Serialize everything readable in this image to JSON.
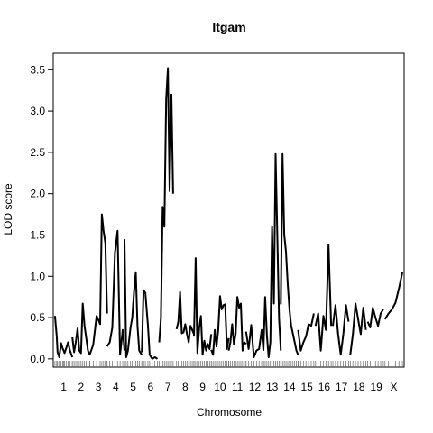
{
  "chart_data": {
    "type": "line",
    "title": "Itgam",
    "xlabel": "Chromosome",
    "ylabel": "LOD score",
    "ylim": [
      0,
      3.5
    ],
    "yticks": [
      "0.0",
      "0.5",
      "1.0",
      "1.5",
      "2.0",
      "2.5",
      "3.0",
      "3.5"
    ],
    "grid": false,
    "legend": "none",
    "chromosome_labels": [
      "1",
      "2",
      "3",
      "4",
      "5",
      "6",
      "7",
      "8",
      "9",
      "10",
      "11",
      "12",
      "13",
      "14",
      "15",
      "16",
      "17",
      "18",
      "19",
      "X"
    ],
    "series": [
      {
        "chromosomes": [
          {
            "chr": "1",
            "start": 0.0,
            "end": 2.0,
            "pos": [
              0.0,
              0.2,
              0.3,
              0.5,
              0.7,
              0.9,
              1.0,
              1.1,
              1.3,
              1.5,
              1.7,
              2.0
            ],
            "lod": [
              0.52,
              0.27,
              0.08,
              0.02,
              0.19,
              0.12,
              0.1,
              0.07,
              0.13,
              0.2,
              0.11,
              0.02
            ]
          },
          {
            "chr": "2",
            "start": 2.0,
            "end": 4.0,
            "pos": [
              2.0,
              2.2,
              2.4,
              2.6,
              2.8,
              3.0,
              3.2,
              3.4,
              3.6,
              3.8,
              4.0
            ],
            "lod": [
              0.26,
              0.08,
              0.2,
              0.37,
              0.1,
              0.07,
              0.67,
              0.4,
              0.25,
              0.1,
              0.05
            ]
          },
          {
            "chr": "3",
            "start": 4.0,
            "end": 6.0,
            "pos": [
              4.0,
              4.4,
              4.8,
              5.2,
              5.4,
              5.6,
              5.8,
              6.0
            ],
            "lod": [
              0.05,
              0.17,
              0.52,
              0.42,
              1.75,
              1.55,
              1.4,
              0.55
            ]
          },
          {
            "chr": "4",
            "start": 6.0,
            "end": 8.0,
            "pos": [
              6.0,
              6.3,
              6.6,
              6.9,
              7.2,
              7.5,
              7.8,
              8.0
            ],
            "lod": [
              0.15,
              0.2,
              0.38,
              1.28,
              1.55,
              0.05,
              0.35,
              0.1
            ]
          },
          {
            "chr": "5",
            "start": 8.0,
            "end": 10.0,
            "pos": [
              8.0,
              8.2,
              8.4,
              8.7,
              8.9,
              9.1,
              9.3,
              9.5,
              9.7,
              10.0
            ],
            "lod": [
              1.45,
              0.02,
              0.1,
              0.38,
              0.5,
              0.8,
              1.05,
              0.4,
              0.1,
              0.05
            ]
          },
          {
            "chr": "6",
            "start": 10.0,
            "end": 12.0,
            "pos": [
              10.0,
              10.2,
              10.4,
              10.7,
              10.9,
              11.2,
              11.5,
              11.8
            ],
            "lod": [
              0.08,
              0.83,
              0.8,
              0.4,
              0.05,
              0.0,
              0.02,
              0.0
            ]
          },
          {
            "chr": "7",
            "start": 12.0,
            "end": 14.0,
            "pos": [
              12.0,
              12.2,
              12.4,
              12.6,
              12.8,
              13.0,
              13.2,
              13.4,
              13.6
            ],
            "lod": [
              0.2,
              0.5,
              1.84,
              1.6,
              3.15,
              3.52,
              2.03,
              3.2,
              2.0
            ]
          },
          {
            "chr": "8",
            "start": 14.0,
            "end": 16.0,
            "pos": [
              14.0,
              14.2,
              14.4,
              14.6,
              14.8,
              15.0,
              15.2,
              15.4,
              15.6,
              15.8,
              16.0
            ],
            "lod": [
              0.36,
              0.45,
              0.81,
              0.31,
              0.32,
              0.42,
              0.3,
              0.2,
              0.4,
              0.35,
              0.3
            ]
          },
          {
            "chr": "9",
            "start": 16.0,
            "end": 18.0,
            "pos": [
              16.0,
              16.2,
              16.4,
              16.6,
              16.8,
              17.0,
              17.2,
              17.4,
              17.6,
              17.8,
              18.0
            ],
            "lod": [
              0.27,
              1.22,
              0.07,
              0.37,
              0.52,
              0.05,
              0.22,
              0.1,
              0.18,
              0.12,
              0.3
            ]
          },
          {
            "chr": "10",
            "start": 18.0,
            "end": 20.0,
            "pos": [
              18.0,
              18.2,
              18.4,
              18.6,
              18.8,
              19.0,
              19.2,
              19.4,
              19.6,
              19.8,
              20.0
            ],
            "lod": [
              0.11,
              0.05,
              0.35,
              0.15,
              0.35,
              0.76,
              0.6,
              0.65,
              0.66,
              0.12,
              0.25
            ]
          },
          {
            "chr": "11",
            "start": 20.0,
            "end": 22.0,
            "pos": [
              20.0,
              20.2,
              20.4,
              20.6,
              20.8,
              21.0,
              21.2,
              21.4,
              21.6,
              21.8,
              22.0
            ],
            "lod": [
              0.1,
              0.2,
              0.42,
              0.18,
              0.3,
              0.75,
              0.62,
              0.67,
              0.1,
              0.2,
              0.18
            ]
          },
          {
            "chr": "12",
            "start": 22.0,
            "end": 24.0,
            "pos": [
              22.0,
              22.3,
              22.6,
              22.9,
              23.2,
              23.5,
              23.8,
              24.0
            ],
            "lod": [
              0.33,
              0.12,
              0.41,
              0.02,
              0.1,
              0.12,
              0.35,
              0.1
            ]
          },
          {
            "chr": "13",
            "start": 24.0,
            "end": 26.0,
            "pos": [
              24.0,
              24.2,
              24.4,
              24.6,
              24.8,
              25.0,
              25.2,
              25.4,
              25.6,
              25.8,
              26.0
            ],
            "lod": [
              0.1,
              0.75,
              0.28,
              0.02,
              0.2,
              1.6,
              0.67,
              2.48,
              1.5,
              0.5,
              0.1
            ]
          },
          {
            "chr": "14",
            "start": 26.0,
            "end": 28.0,
            "pos": [
              26.0,
              26.2,
              26.4,
              26.6,
              26.8,
              27.0,
              27.2,
              27.4,
              27.6,
              27.8,
              28.0
            ],
            "lod": [
              0.66,
              2.48,
              1.5,
              1.3,
              0.9,
              0.6,
              0.4,
              0.3,
              0.2,
              0.1,
              0.05
            ]
          },
          {
            "chr": "15",
            "start": 28.0,
            "end": 30.0,
            "pos": [
              28.0,
              28.3,
              28.6,
              28.9,
              29.2,
              29.5,
              29.8
            ],
            "lod": [
              0.35,
              0.1,
              0.2,
              0.27,
              0.42,
              0.4,
              0.55
            ]
          },
          {
            "chr": "16",
            "start": 30.0,
            "end": 32.0,
            "pos": [
              30.0,
              30.3,
              30.6,
              30.9,
              31.2,
              31.5,
              31.8
            ],
            "lod": [
              0.4,
              0.55,
              0.1,
              0.52,
              0.35,
              1.38,
              0.4
            ]
          },
          {
            "chr": "17",
            "start": 32.0,
            "end": 34.0,
            "pos": [
              32.0,
              32.3,
              32.6,
              32.9,
              33.2,
              33.5,
              33.8
            ],
            "lod": [
              0.4,
              0.65,
              0.3,
              0.05,
              0.3,
              0.65,
              0.45
            ]
          },
          {
            "chr": "18",
            "start": 34.0,
            "end": 36.0,
            "pos": [
              34.0,
              34.3,
              34.6,
              34.9,
              35.2,
              35.5,
              35.8
            ],
            "lod": [
              0.05,
              0.3,
              0.67,
              0.48,
              0.3,
              0.62,
              0.35
            ]
          },
          {
            "chr": "19",
            "start": 36.0,
            "end": 38.0,
            "pos": [
              36.0,
              36.3,
              36.6,
              36.9,
              37.2,
              37.5,
              37.8
            ],
            "lod": [
              0.45,
              0.38,
              0.62,
              0.5,
              0.4,
              0.55,
              0.6
            ]
          },
          {
            "chr": "X",
            "start": 38.0,
            "end": 40.0,
            "pos": [
              38.0,
              38.4,
              38.8,
              39.2,
              39.6,
              40.0
            ],
            "lod": [
              0.48,
              0.55,
              0.6,
              0.68,
              0.85,
              1.05
            ]
          }
        ]
      }
    ]
  }
}
